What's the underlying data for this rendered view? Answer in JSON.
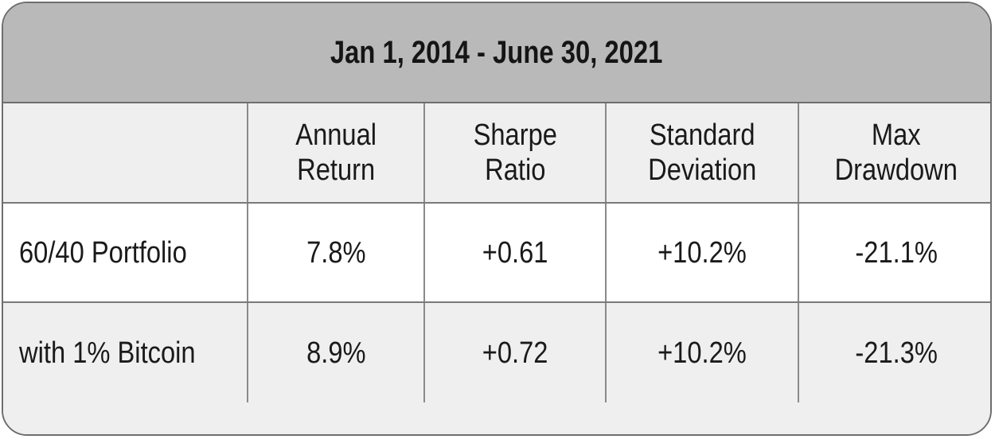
{
  "title": "Jan 1, 2014 - June 30, 2021",
  "columns": [
    {
      "line1": "Annual",
      "line2": "Return"
    },
    {
      "line1": "Sharpe",
      "line2": "Ratio"
    },
    {
      "line1": "Standard",
      "line2": "Deviation"
    },
    {
      "line1": "Max",
      "line2": "Drawdown"
    }
  ],
  "rows": [
    {
      "label": "60/40 Portfolio",
      "values": [
        "7.8%",
        "+0.61",
        "+10.2%",
        "-21.1%"
      ]
    },
    {
      "label": "with 1% Bitcoin",
      "values": [
        "8.9%",
        "+0.72",
        "+10.2%",
        "-21.3%"
      ]
    }
  ],
  "colors": {
    "title_bg": "#b9b9b9",
    "shaded_row_bg": "#efefef",
    "border": "#6e6e6e"
  }
}
